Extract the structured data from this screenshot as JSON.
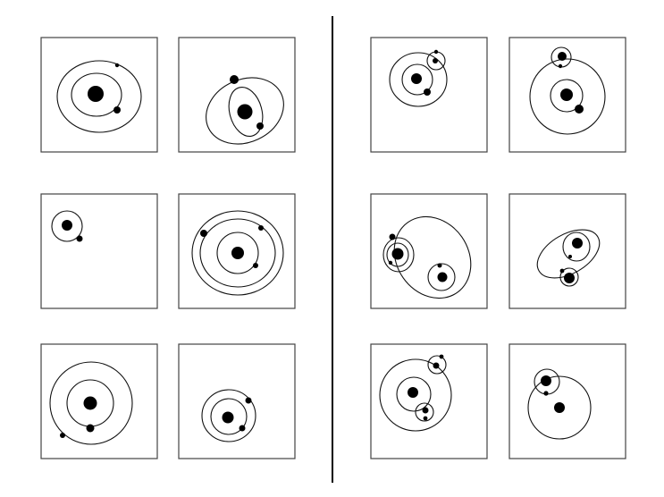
{
  "figure": {
    "left_group": {
      "panels": [
        {
          "name": "panel-left-1"
        },
        {
          "name": "panel-left-2"
        },
        {
          "name": "panel-left-3"
        },
        {
          "name": "panel-left-4"
        },
        {
          "name": "panel-left-5"
        },
        {
          "name": "panel-left-6"
        }
      ]
    },
    "right_group": {
      "panels": [
        {
          "name": "panel-right-1"
        },
        {
          "name": "panel-right-2"
        },
        {
          "name": "panel-right-3"
        },
        {
          "name": "panel-right-4"
        },
        {
          "name": "panel-right-5"
        },
        {
          "name": "panel-right-6"
        }
      ]
    },
    "colors": {
      "frame": "#444444",
      "orbit": "#111111",
      "body": "#000000",
      "background": "#ffffff"
    }
  }
}
